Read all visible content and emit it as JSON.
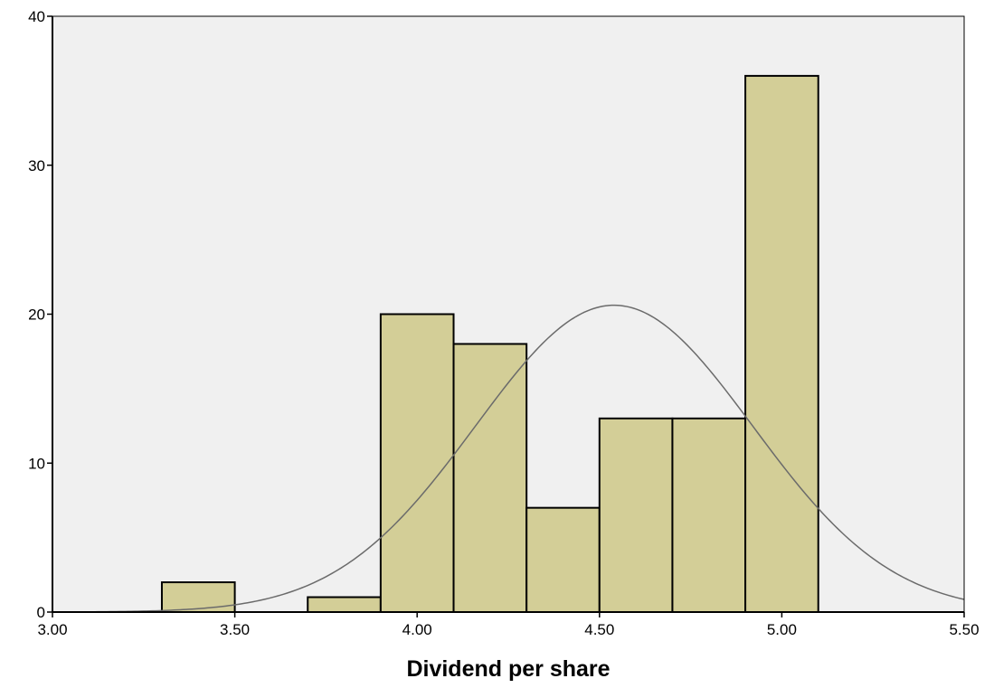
{
  "chart_data": {
    "type": "bar",
    "subtype": "histogram",
    "title": "",
    "xlabel": "Dividend per share",
    "ylabel": "",
    "xlim": [
      3.0,
      5.5
    ],
    "ylim": [
      0,
      40
    ],
    "x_ticks": [
      3.0,
      3.5,
      4.0,
      4.5,
      5.0,
      5.5
    ],
    "x_tick_labels": [
      "3.00",
      "3.50",
      "4.00",
      "4.50",
      "5.00",
      "5.50"
    ],
    "y_ticks": [
      0,
      10,
      20,
      30,
      40
    ],
    "y_tick_labels": [
      "0",
      "10",
      "20",
      "30",
      "40"
    ],
    "bins": [
      {
        "start": 3.3,
        "end": 3.5,
        "count": 2
      },
      {
        "start": 3.7,
        "end": 3.9,
        "count": 1
      },
      {
        "start": 3.9,
        "end": 4.1,
        "count": 20
      },
      {
        "start": 4.1,
        "end": 4.3,
        "count": 18
      },
      {
        "start": 4.3,
        "end": 4.5,
        "count": 7
      },
      {
        "start": 4.5,
        "end": 4.7,
        "count": 13
      },
      {
        "start": 4.7,
        "end": 4.9,
        "count": 13
      },
      {
        "start": 4.9,
        "end": 5.1,
        "count": 36
      }
    ],
    "normal_curve": {
      "mean": 4.54,
      "sd": 0.38,
      "peak": 20.6
    },
    "grid": false,
    "legend": "none",
    "colors": {
      "plot_background": "#f0f0f0",
      "bar_fill": "#d3ce97",
      "bar_stroke": "#000000",
      "curve": "#6b6b6b"
    }
  }
}
